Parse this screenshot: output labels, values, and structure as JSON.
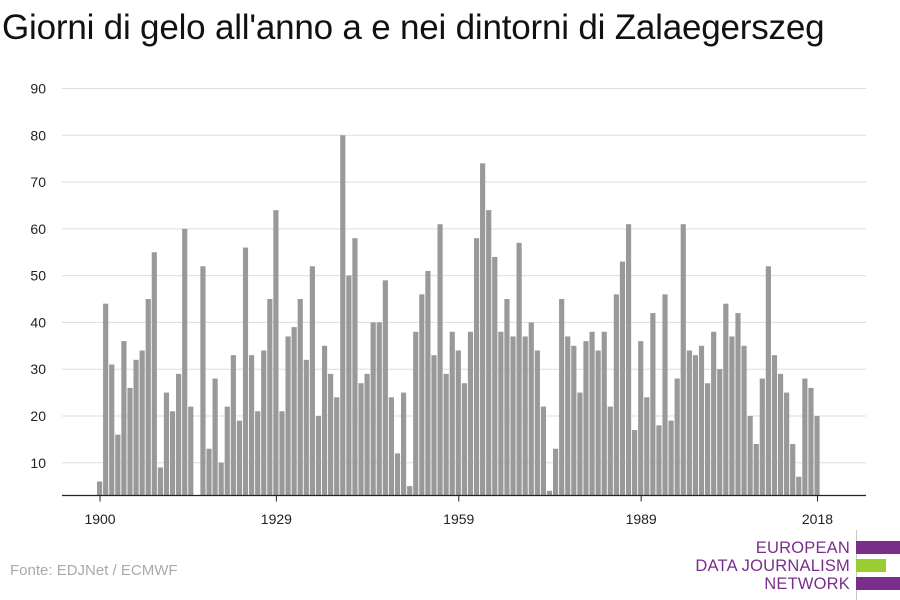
{
  "title": "Giorni di gelo all'anno a e nei dintorni di Zalaegerszeg",
  "source": "Fonte: EDJNet / ECMWF",
  "logo": {
    "line1": "EUROPEAN",
    "line2": "DATA JOURNALISM",
    "line3": "NETWORK",
    "colors": {
      "purple": "#7a2e8c",
      "green": "#9acd32"
    }
  },
  "chart_data": {
    "type": "bar",
    "title": "Giorni di gelo all'anno a e nei dintorni di Zalaegerszeg",
    "xlabel": "",
    "ylabel": "",
    "ylim": [
      3,
      90
    ],
    "yticks": [
      10,
      20,
      30,
      40,
      50,
      60,
      70,
      80,
      90
    ],
    "xticks": [
      1900,
      1929,
      1959,
      1989,
      2018
    ],
    "grid": true,
    "bar_color": "#999999",
    "categories": [
      1900,
      1901,
      1902,
      1903,
      1904,
      1905,
      1906,
      1907,
      1908,
      1909,
      1910,
      1911,
      1912,
      1913,
      1914,
      1915,
      1916,
      1917,
      1918,
      1919,
      1920,
      1921,
      1922,
      1923,
      1924,
      1925,
      1926,
      1927,
      1928,
      1929,
      1930,
      1931,
      1932,
      1933,
      1934,
      1935,
      1936,
      1937,
      1938,
      1939,
      1940,
      1941,
      1942,
      1943,
      1944,
      1945,
      1946,
      1947,
      1948,
      1949,
      1950,
      1951,
      1952,
      1953,
      1954,
      1955,
      1956,
      1957,
      1958,
      1959,
      1960,
      1961,
      1962,
      1963,
      1964,
      1965,
      1966,
      1967,
      1968,
      1969,
      1970,
      1971,
      1972,
      1973,
      1974,
      1975,
      1976,
      1977,
      1978,
      1979,
      1980,
      1981,
      1982,
      1983,
      1984,
      1985,
      1986,
      1987,
      1988,
      1989,
      1990,
      1991,
      1992,
      1993,
      1994,
      1995,
      1996,
      1997,
      1998,
      1999,
      2000,
      2001,
      2002,
      2003,
      2004,
      2005,
      2006,
      2007,
      2008,
      2009,
      2010,
      2011,
      2012,
      2013,
      2014,
      2015,
      2016,
      2017,
      2018
    ],
    "values": [
      6,
      44,
      31,
      16,
      36,
      26,
      32,
      34,
      45,
      55,
      9,
      25,
      21,
      29,
      60,
      22,
      3,
      52,
      13,
      28,
      10,
      22,
      33,
      19,
      56,
      33,
      21,
      34,
      45,
      64,
      21,
      37,
      39,
      45,
      32,
      52,
      20,
      35,
      29,
      24,
      80,
      50,
      58,
      27,
      29,
      40,
      40,
      49,
      24,
      12,
      25,
      5,
      38,
      46,
      51,
      33,
      61,
      29,
      38,
      34,
      27,
      38,
      58,
      74,
      64,
      54,
      38,
      45,
      37,
      57,
      37,
      40,
      34,
      22,
      4,
      13,
      45,
      37,
      35,
      25,
      36,
      38,
      34,
      38,
      22,
      46,
      53,
      61,
      17,
      36,
      24,
      42,
      18,
      46,
      19,
      28,
      61,
      34,
      33,
      35,
      27,
      38,
      30,
      44,
      37,
      42,
      35,
      20,
      14,
      28,
      52,
      33,
      29,
      25,
      14,
      7,
      28,
      26,
      20
    ]
  }
}
